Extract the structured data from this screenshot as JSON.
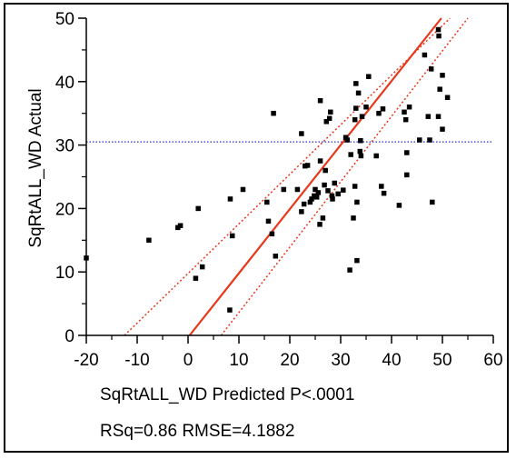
{
  "chart_data": {
    "type": "scatter",
    "xlabel": "SqRtALL_WD Predicted P<.0001",
    "ylabel": "SqRtALL_WD Actual",
    "stats_label": "RSq=0.86 RMSE=4.1882",
    "xlim": [
      -20,
      60
    ],
    "ylim": [
      0,
      50
    ],
    "xticks": [
      -20,
      -10,
      0,
      10,
      20,
      30,
      40,
      50,
      60
    ],
    "yticks": [
      0,
      10,
      20,
      30,
      40,
      50
    ],
    "mean_line_y": 30.5,
    "fit_line": {
      "x": [
        0.3,
        49.8
      ],
      "y": [
        0,
        50
      ]
    },
    "confidence_upper": {
      "x": [
        -12.5,
        51.5
      ],
      "y": [
        0,
        50
      ]
    },
    "confidence_lower": {
      "x": [
        6.5,
        55
      ],
      "y": [
        0,
        50
      ]
    },
    "colors": {
      "points": "#000000",
      "fit_line": "#e8371a",
      "confidence": "#e8371a",
      "mean_line": "#2b2bd6"
    },
    "points": [
      [
        -20,
        12.2
      ],
      [
        -7.7,
        15
      ],
      [
        -2,
        17
      ],
      [
        -1.5,
        17.3
      ],
      [
        1.5,
        9
      ],
      [
        2,
        20
      ],
      [
        2.8,
        10.8
      ],
      [
        8.2,
        4
      ],
      [
        8.3,
        21.5
      ],
      [
        8.7,
        15.7
      ],
      [
        10.8,
        23
      ],
      [
        15.5,
        21
      ],
      [
        15.8,
        18
      ],
      [
        16.5,
        16
      ],
      [
        16.8,
        35
      ],
      [
        17.2,
        12.5
      ],
      [
        18.8,
        23
      ],
      [
        21.5,
        23
      ],
      [
        22.3,
        31.8
      ],
      [
        22.3,
        19.5
      ],
      [
        22.8,
        20.7
      ],
      [
        23,
        26.7
      ],
      [
        23.5,
        26.8
      ],
      [
        24,
        21
      ],
      [
        24.3,
        21.5
      ],
      [
        24.8,
        22
      ],
      [
        25,
        23
      ],
      [
        25.3,
        21.8
      ],
      [
        25.6,
        22.5
      ],
      [
        25.9,
        17.5
      ],
      [
        26,
        37
      ],
      [
        26,
        27.5
      ],
      [
        26.5,
        18.5
      ],
      [
        26.8,
        23.7
      ],
      [
        27,
        26
      ],
      [
        27.2,
        33.7
      ],
      [
        27.5,
        22.8
      ],
      [
        27.8,
        34.2
      ],
      [
        28,
        35.2
      ],
      [
        28.3,
        22
      ],
      [
        28.4,
        21.5
      ],
      [
        28.8,
        24
      ],
      [
        29.5,
        22.3
      ],
      [
        30.5,
        22.9
      ],
      [
        31,
        31.2
      ],
      [
        31.3,
        30.8
      ],
      [
        31.8,
        10.3
      ],
      [
        32,
        28.5
      ],
      [
        32.5,
        18.5
      ],
      [
        32.8,
        34
      ],
      [
        33,
        35.8
      ],
      [
        33,
        39.7
      ],
      [
        33.2,
        21
      ],
      [
        32.8,
        23.5
      ],
      [
        33.2,
        11.8
      ],
      [
        33.5,
        38.2
      ],
      [
        33.8,
        29
      ],
      [
        33.9,
        30.7
      ],
      [
        34,
        28.3
      ],
      [
        34.2,
        34.5
      ],
      [
        35,
        36
      ],
      [
        35.5,
        40.8
      ],
      [
        37,
        28.3
      ],
      [
        37.5,
        35
      ],
      [
        38,
        23.5
      ],
      [
        38.3,
        35.7
      ],
      [
        38.5,
        22.4
      ],
      [
        41.5,
        20.5
      ],
      [
        42.5,
        35.2
      ],
      [
        42.8,
        34
      ],
      [
        43,
        28.8
      ],
      [
        43,
        25.3
      ],
      [
        43.5,
        36
      ],
      [
        45.5,
        30.8
      ],
      [
        46.5,
        44.2
      ],
      [
        47.2,
        34.5
      ],
      [
        47.5,
        30.8
      ],
      [
        47.8,
        42
      ],
      [
        48,
        21
      ],
      [
        49.2,
        34.5
      ],
      [
        49.2,
        48.2
      ],
      [
        49.3,
        47.2
      ],
      [
        49.5,
        38.8
      ],
      [
        50,
        41
      ],
      [
        50,
        32.5
      ],
      [
        51,
        37.5
      ]
    ]
  }
}
